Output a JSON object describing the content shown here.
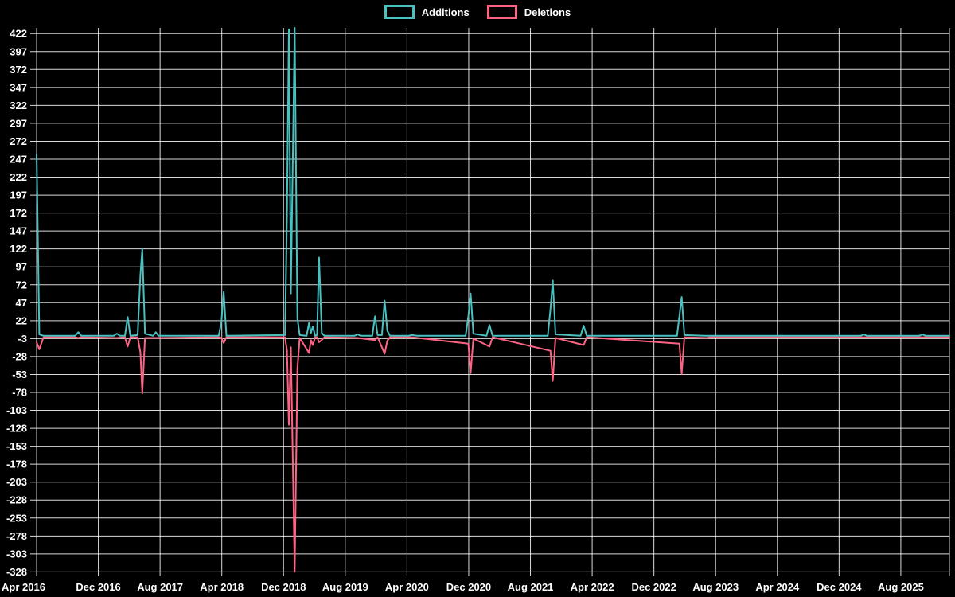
{
  "legend": {
    "items": [
      {
        "label": "Additions"
      },
      {
        "label": "Deletions"
      }
    ]
  },
  "chart_data": {
    "type": "line",
    "title": "",
    "xlabel": "",
    "ylabel": "",
    "x_unit": "months since Apr 2016 (weekly samples)",
    "grid": true,
    "legend_position": "top-center",
    "background_color": "#000000",
    "grid_color": "#ffffff",
    "text_color": "#ffffff",
    "ylim": [
      -328,
      422
    ],
    "y_tick_step": 25,
    "y_ticks": [
      422,
      397,
      372,
      347,
      322,
      297,
      272,
      247,
      222,
      197,
      172,
      147,
      122,
      97,
      72,
      47,
      22,
      -3,
      -28,
      -53,
      -78,
      -103,
      -128,
      -153,
      -178,
      -203,
      -228,
      -253,
      -278,
      -303,
      -328
    ],
    "x_ticks": [
      {
        "label": "Apr 2016",
        "month": 0
      },
      {
        "label": "Dec 2016",
        "month": 8
      },
      {
        "label": "Aug 2017",
        "month": 16
      },
      {
        "label": "Apr 2018",
        "month": 24
      },
      {
        "label": "Dec 2018",
        "month": 32
      },
      {
        "label": "Aug 2019",
        "month": 40
      },
      {
        "label": "Apr 2020",
        "month": 48
      },
      {
        "label": "Dec 2020",
        "month": 56
      },
      {
        "label": "Aug 2021",
        "month": 64
      },
      {
        "label": "Apr 2022",
        "month": 72
      },
      {
        "label": "Dec 2022",
        "month": 80
      },
      {
        "label": "Aug 2023",
        "month": 88
      },
      {
        "label": "Apr 2024",
        "month": 96
      },
      {
        "label": "Dec 2024",
        "month": 104
      },
      {
        "label": "Aug 2025",
        "month": 112
      }
    ],
    "series": [
      {
        "name": "Deletions",
        "color": "#ff6384",
        "points": [
          [
            0,
            -8
          ],
          [
            0.35,
            -18
          ],
          [
            0.9,
            -1
          ],
          [
            5.0,
            -1
          ],
          [
            5.4,
            -2
          ],
          [
            5.8,
            -1
          ],
          [
            10.4,
            -2
          ],
          [
            11.45,
            -1
          ],
          [
            11.8,
            -14
          ],
          [
            12.15,
            -1
          ],
          [
            13.1,
            -1
          ],
          [
            13.45,
            -22
          ],
          [
            13.7,
            -79
          ],
          [
            14.05,
            -2
          ],
          [
            15.45,
            -2
          ],
          [
            23.6,
            -1
          ],
          [
            23.95,
            -2
          ],
          [
            24.25,
            -9
          ],
          [
            24.6,
            -1
          ],
          [
            32.2,
            -1
          ],
          [
            32.45,
            -20
          ],
          [
            32.7,
            -123
          ],
          [
            32.95,
            -15
          ],
          [
            33.45,
            -328
          ],
          [
            33.8,
            -45
          ],
          [
            34.1,
            -2
          ],
          [
            35.3,
            -23
          ],
          [
            35.55,
            -5
          ],
          [
            35.8,
            -12
          ],
          [
            36.1,
            -1
          ],
          [
            36.35,
            -1
          ],
          [
            36.6,
            -8
          ],
          [
            36.95,
            -5
          ],
          [
            37.3,
            -1
          ],
          [
            41.6,
            -2
          ],
          [
            43.85,
            -5
          ],
          [
            44.2,
            -1
          ],
          [
            45.1,
            -24
          ],
          [
            45.45,
            -6
          ],
          [
            45.8,
            -1
          ],
          [
            48.6,
            -1
          ],
          [
            55.95,
            -10
          ],
          [
            56.25,
            -51
          ],
          [
            56.6,
            -3
          ],
          [
            58.7,
            -14
          ],
          [
            59.1,
            -1
          ],
          [
            66.6,
            -20
          ],
          [
            66.9,
            -62
          ],
          [
            67.25,
            -2
          ],
          [
            70.9,
            -12
          ],
          [
            71.3,
            -1
          ],
          [
            83.3,
            -10
          ],
          [
            83.6,
            -52
          ],
          [
            83.95,
            -1
          ],
          [
            86.9,
            -2
          ],
          [
            87.3,
            -1
          ],
          [
            107.2,
            -1
          ],
          [
            114.8,
            -1
          ],
          [
            118.3,
            -1
          ]
        ]
      },
      {
        "name": "Additions",
        "color": "#4bc0c0",
        "points": [
          [
            0,
            254
          ],
          [
            0.35,
            3
          ],
          [
            0.9,
            1
          ],
          [
            5.0,
            1
          ],
          [
            5.4,
            6
          ],
          [
            5.8,
            1
          ],
          [
            10.0,
            1
          ],
          [
            10.4,
            4
          ],
          [
            10.8,
            1
          ],
          [
            11.45,
            1
          ],
          [
            11.8,
            27
          ],
          [
            12.15,
            1
          ],
          [
            13.1,
            2
          ],
          [
            13.45,
            85
          ],
          [
            13.7,
            122
          ],
          [
            14.05,
            4
          ],
          [
            15.1,
            1
          ],
          [
            15.45,
            6
          ],
          [
            15.8,
            1
          ],
          [
            23.6,
            1
          ],
          [
            23.95,
            20
          ],
          [
            24.25,
            62
          ],
          [
            24.6,
            1
          ],
          [
            32.2,
            2
          ],
          [
            32.45,
            172
          ],
          [
            32.7,
            428
          ],
          [
            32.95,
            60
          ],
          [
            33.45,
            430
          ],
          [
            33.8,
            25
          ],
          [
            34.1,
            2
          ],
          [
            35.0,
            1
          ],
          [
            35.3,
            19
          ],
          [
            35.55,
            5
          ],
          [
            35.8,
            14
          ],
          [
            36.1,
            1
          ],
          [
            36.35,
            2
          ],
          [
            36.6,
            110
          ],
          [
            36.95,
            5
          ],
          [
            37.3,
            1
          ],
          [
            41.2,
            1
          ],
          [
            41.6,
            3
          ],
          [
            42.0,
            1
          ],
          [
            43.5,
            1
          ],
          [
            43.85,
            28
          ],
          [
            44.2,
            2
          ],
          [
            44.75,
            2
          ],
          [
            45.1,
            50
          ],
          [
            45.45,
            8
          ],
          [
            45.8,
            1
          ],
          [
            48.2,
            1
          ],
          [
            48.6,
            2
          ],
          [
            49.3,
            1
          ],
          [
            55.6,
            1
          ],
          [
            55.95,
            28
          ],
          [
            56.25,
            60
          ],
          [
            56.6,
            4
          ],
          [
            58.3,
            1
          ],
          [
            58.7,
            16
          ],
          [
            59.1,
            1
          ],
          [
            66.25,
            1
          ],
          [
            66.6,
            38
          ],
          [
            66.9,
            78
          ],
          [
            67.25,
            3
          ],
          [
            70.5,
            1
          ],
          [
            70.9,
            15
          ],
          [
            71.3,
            1
          ],
          [
            83.0,
            1
          ],
          [
            83.3,
            28
          ],
          [
            83.6,
            55
          ],
          [
            83.95,
            2
          ],
          [
            86.6,
            1
          ],
          [
            86.9,
            1
          ],
          [
            87.3,
            1
          ],
          [
            106.8,
            1
          ],
          [
            107.2,
            3
          ],
          [
            107.6,
            1
          ],
          [
            114.4,
            1
          ],
          [
            114.8,
            3
          ],
          [
            115.2,
            1
          ],
          [
            118.3,
            1
          ]
        ]
      }
    ]
  }
}
